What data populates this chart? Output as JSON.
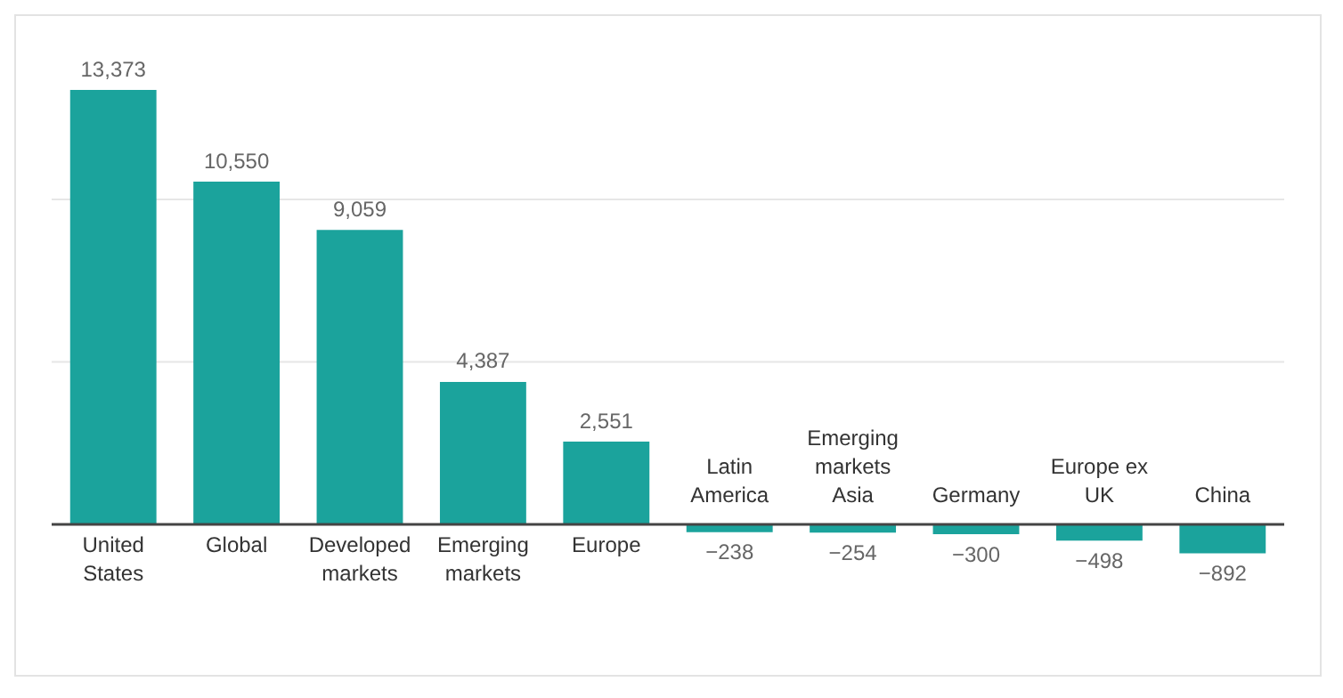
{
  "chart_data": {
    "type": "bar",
    "categories": [
      "United States",
      "Global",
      "Developed markets",
      "Emerging markets",
      "Europe",
      "Latin America",
      "Emerging markets Asia",
      "Germany",
      "Europe ex UK",
      "China"
    ],
    "values": [
      13373,
      10550,
      9059,
      4387,
      2551,
      -238,
      -254,
      -300,
      -498,
      -892
    ],
    "value_labels": [
      "13,373",
      "10,550",
      "9,059",
      "4,387",
      "2,551",
      "−238",
      "−254",
      "−300",
      "−498",
      "−892"
    ],
    "color": "#1ba39c",
    "ref_lines": [
      {
        "axis": "y",
        "value": 5000,
        "color": "#e6e6e6"
      },
      {
        "axis": "y",
        "value": 10000,
        "color": "#e6e6e6"
      }
    ]
  }
}
